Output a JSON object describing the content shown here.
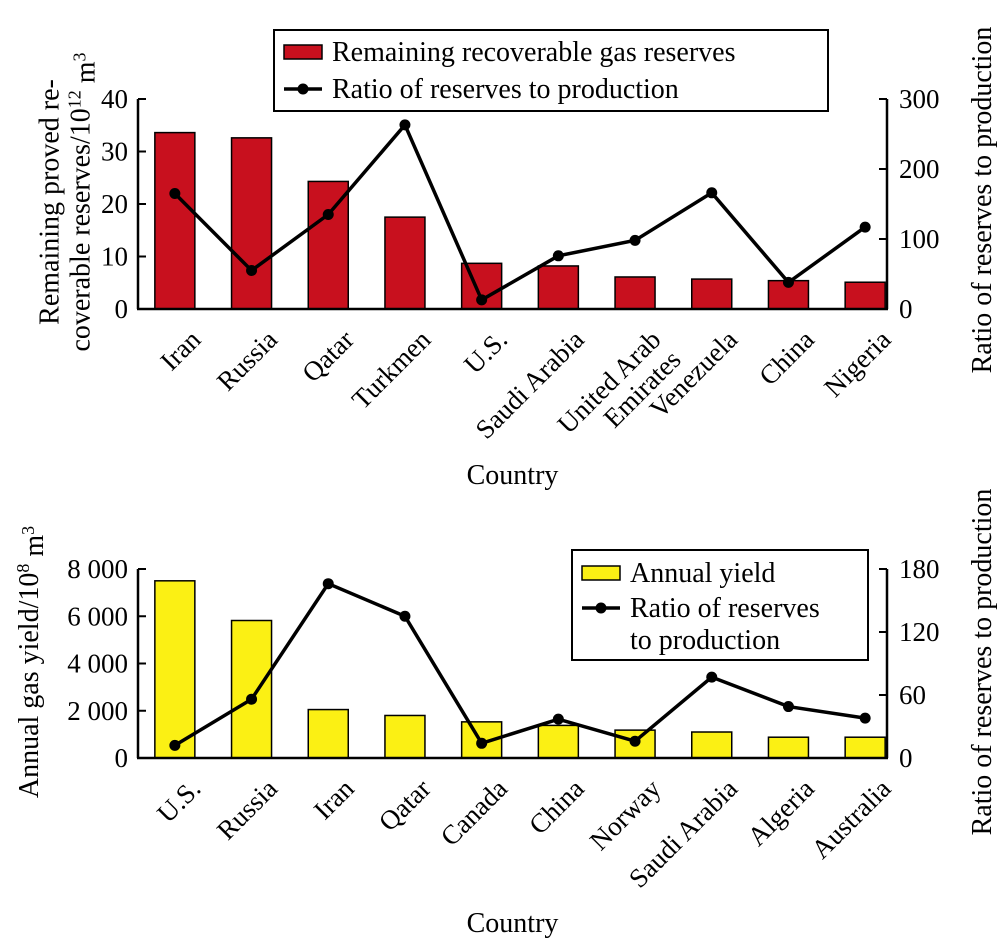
{
  "colors": {
    "reserves_bar": "#c8101e",
    "yield_bar": "#fbf014",
    "line": "#000000",
    "axis": "#000000"
  },
  "chart_data": [
    {
      "type": "bar",
      "categories": [
        "Iran",
        "Russia",
        "Qatar",
        "Turkmen",
        "U.S.",
        "Saudi Arabia",
        "United Arab Emirates",
        "Venezuela",
        "China",
        "Nigeria"
      ],
      "category_labels": [
        [
          "Iran"
        ],
        [
          "Russia"
        ],
        [
          "Qatar"
        ],
        [
          "Turkmen"
        ],
        [
          "U.S."
        ],
        [
          "Saudi Arabia"
        ],
        [
          "United Arab",
          "Emirates"
        ],
        [
          "Venezuela"
        ],
        [
          "China"
        ],
        [
          "Nigeria"
        ]
      ],
      "xlabel": "Country",
      "ylabel": [
        "Remaining proved re-",
        "coverable reserves/10",
        "12",
        " m",
        "3"
      ],
      "y2label": "Ratio of reserves to production",
      "ylim": [
        0,
        40
      ],
      "yticks": [
        0,
        10,
        20,
        30,
        40
      ],
      "y2lim": [
        0,
        300
      ],
      "y2ticks": [
        0,
        100,
        200,
        300
      ],
      "legend_position": "top-center",
      "series": [
        {
          "name": "Remaining recoverable gas reserves",
          "kind": "bar",
          "axis": "left",
          "values": [
            33.6,
            32.6,
            24.3,
            17.5,
            8.7,
            8.2,
            6.1,
            5.7,
            5.4,
            5.1
          ]
        },
        {
          "name": "Ratio of reserves to production",
          "kind": "line",
          "axis": "right",
          "values": [
            165,
            55,
            135,
            263,
            13,
            76,
            98,
            166,
            38,
            117
          ]
        }
      ]
    },
    {
      "type": "bar",
      "categories": [
        "U.S.",
        "Russia",
        "Iran",
        "Qatar",
        "Canada",
        "China",
        "Norway",
        "Saudi Arabia",
        "Algeria",
        "Australia"
      ],
      "category_labels": [
        [
          "U.S."
        ],
        [
          "Russia"
        ],
        [
          "Iran"
        ],
        [
          "Qatar"
        ],
        [
          "Canada"
        ],
        [
          "China"
        ],
        [
          "Norway"
        ],
        [
          "Saudi Arabia"
        ],
        [
          "Algeria"
        ],
        [
          "Australia"
        ]
      ],
      "xlabel": "Country",
      "ylabel": [
        "Annual gas yield/10",
        "8",
        " m",
        "3"
      ],
      "y2label": "Ratio of reserves to production",
      "ylim": [
        0,
        8000
      ],
      "yticks": [
        0,
        2000,
        4000,
        6000,
        8000
      ],
      "ytick_labels": [
        "0",
        "2 000",
        "4 000",
        "6 000",
        "8 000"
      ],
      "y2lim": [
        0,
        180
      ],
      "y2ticks": [
        0,
        60,
        120,
        180
      ],
      "legend_position": "top-right",
      "series": [
        {
          "name": "Annual yield",
          "kind": "bar",
          "axis": "left",
          "values": [
            7500,
            5820,
            2050,
            1800,
            1530,
            1380,
            1180,
            1100,
            880,
            880
          ]
        },
        {
          "name": [
            "Ratio of reserves",
            "to production"
          ],
          "kind": "line",
          "axis": "right",
          "values": [
            12,
            56,
            166,
            135,
            14,
            37,
            16,
            77,
            49,
            38
          ]
        }
      ]
    }
  ]
}
